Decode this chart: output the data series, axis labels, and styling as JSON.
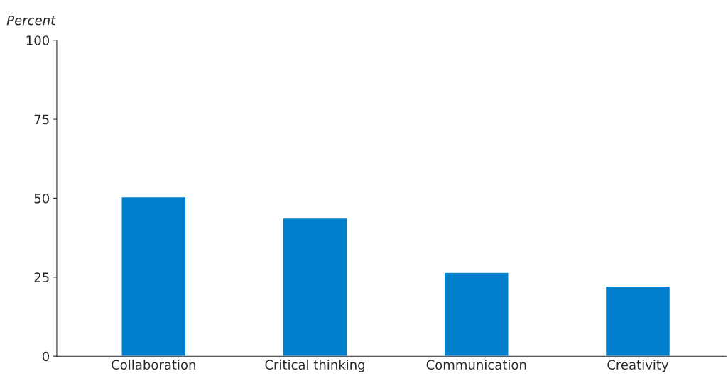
{
  "chart_data": {
    "type": "bar",
    "ylabel": "Percent",
    "categories": [
      "Collaboration",
      "Critical thinking",
      "Communication",
      "Creativity"
    ],
    "values": [
      50.4,
      43.7,
      26.5,
      22.2
    ],
    "color": "#0080cc",
    "ylim": [
      0,
      100
    ],
    "yticks": [
      0,
      25,
      50,
      75,
      100
    ],
    "grid": false,
    "legend": false
  }
}
